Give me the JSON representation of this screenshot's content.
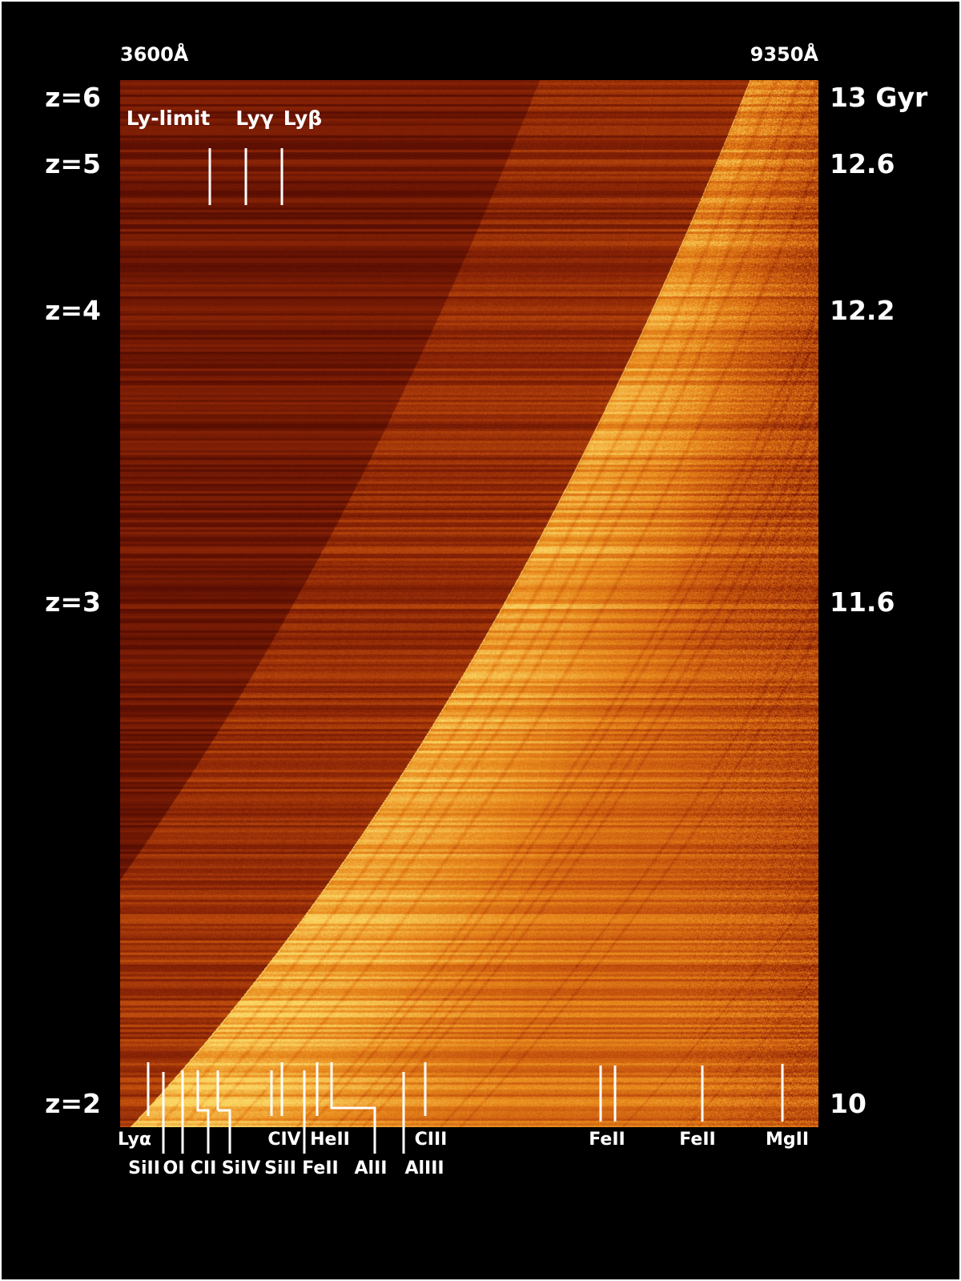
{
  "chart_data": {
    "type": "heatmap",
    "title": "",
    "x_axis": {
      "quantity": "observed wavelength",
      "unit": "Å",
      "range": [
        3600,
        9350
      ],
      "tick_labels": [
        "3600Å",
        "9350Å"
      ]
    },
    "y_axis_left": {
      "quantity": "redshift",
      "range": [
        2,
        6
      ],
      "ticks": [
        {
          "value": 6,
          "label": "z=6"
        },
        {
          "value": 5,
          "label": "z=5"
        },
        {
          "value": 4,
          "label": "z=4"
        },
        {
          "value": 3,
          "label": "z=3"
        },
        {
          "value": 2,
          "label": "z=2"
        }
      ]
    },
    "y_axis_right": {
      "quantity": "lookback time",
      "unit": "Gyr",
      "ticks": [
        {
          "z": 6,
          "label": "13 Gyr"
        },
        {
          "z": 5,
          "label": "12.6"
        },
        {
          "z": 4,
          "label": "12.2"
        },
        {
          "z": 3,
          "label": "11.6"
        },
        {
          "z": 2,
          "label": "10"
        }
      ]
    },
    "colormap": [
      "#5a0e02",
      "#8a2406",
      "#c4500d",
      "#e98a1c",
      "#fbd765"
    ],
    "top_line_labels": [
      {
        "label": "Ly-limit",
        "rest_wavelength": 912
      },
      {
        "label": "Lyγ",
        "rest_wavelength": 972.5
      },
      {
        "label": "Lyβ",
        "rest_wavelength": 1025.7
      }
    ],
    "bottom_line_labels": [
      {
        "label": "Lyα",
        "rest_wavelength": 1215.7
      },
      {
        "label": "SiII",
        "rest_wavelength": 1260.4
      },
      {
        "label": "OI",
        "rest_wavelength": 1302.2
      },
      {
        "label": "CII",
        "rest_wavelength": 1334.5
      },
      {
        "label": "SiIV",
        "rest_wavelength": 1396.8
      },
      {
        "label": "CIV",
        "rest_wavelength": 1549.1
      },
      {
        "label": "SiII",
        "rest_wavelength": 1526.7
      },
      {
        "label": "HeII",
        "rest_wavelength": 1640.4
      },
      {
        "label": "FeII",
        "rest_wavelength": 1608.5
      },
      {
        "label": "AlII",
        "rest_wavelength": 1670.8
      },
      {
        "label": "CIII",
        "rest_wavelength": 1908.7
      },
      {
        "label": "AlIII",
        "rest_wavelength": 1857.4
      },
      {
        "label": "FeII",
        "rest_wavelength": 2382.8
      },
      {
        "label": "FeII",
        "rest_wavelength": 2600.2
      },
      {
        "label": "MgII",
        "rest_wavelength": 2798.8
      }
    ]
  }
}
